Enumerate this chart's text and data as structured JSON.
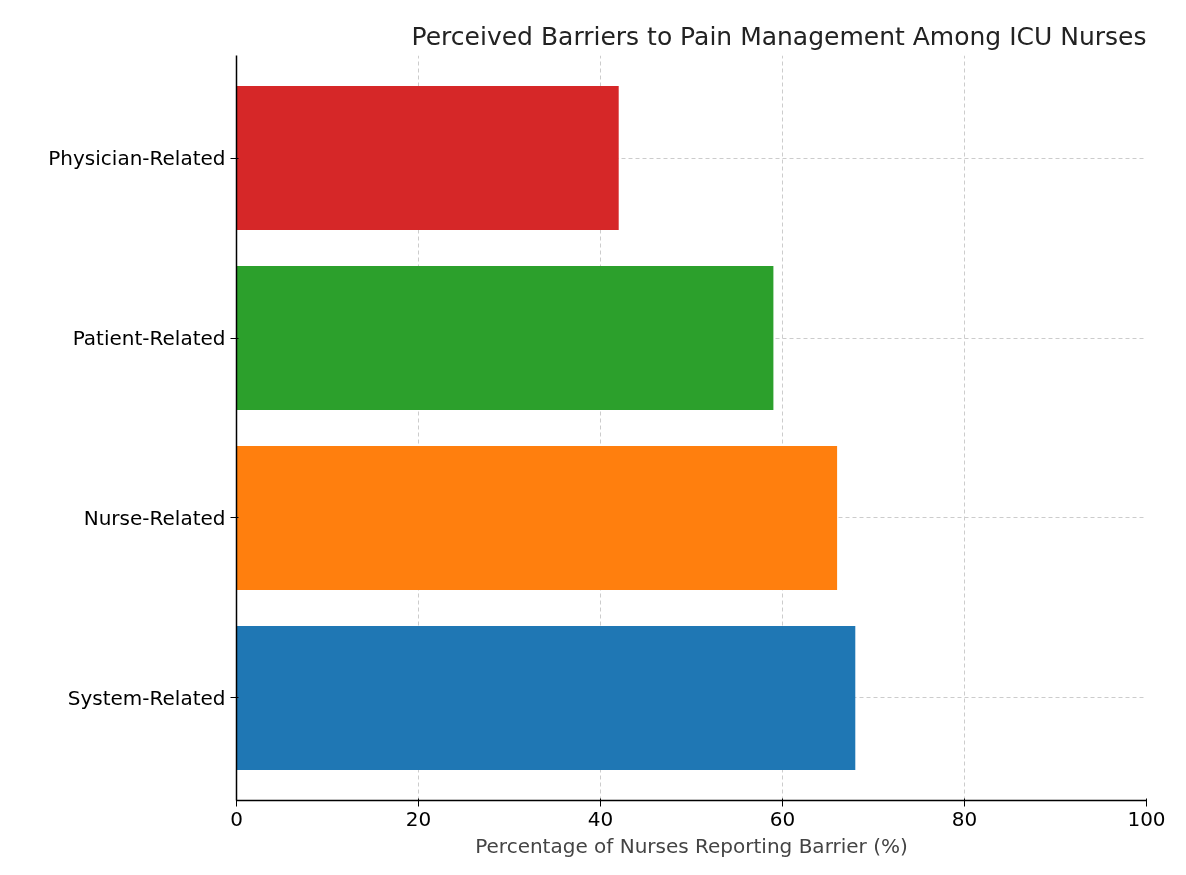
{
  "chart_data": {
    "type": "bar",
    "orientation": "horizontal",
    "title": "Perceived Barriers to Pain Management Among ICU Nurses",
    "xlabel": "Percentage of Nurses Reporting Barrier (%)",
    "categories": [
      "Physician-Related",
      "Patient-Related",
      "Nurse-Related",
      "System-Related"
    ],
    "values": [
      42,
      59,
      66,
      68
    ],
    "colors": [
      "#d62728",
      "#2ca02c",
      "#ff7f0e",
      "#1f77b4"
    ],
    "xlim": [
      0,
      100
    ],
    "xticks": [
      0,
      20,
      40,
      60,
      80,
      100
    ],
    "grid": true
  }
}
